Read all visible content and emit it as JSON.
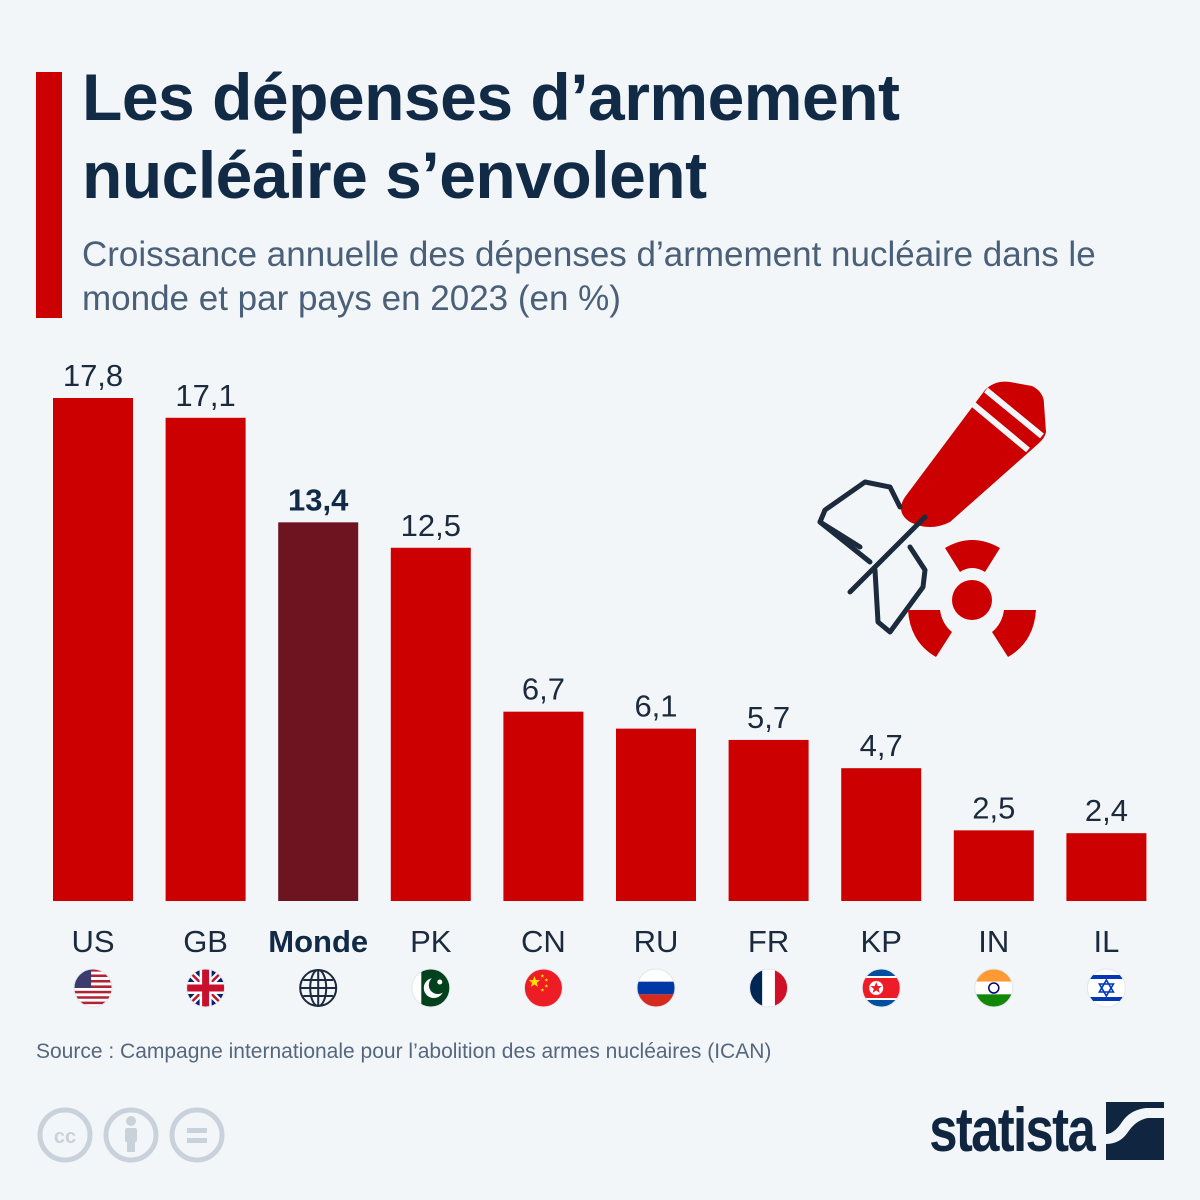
{
  "header": {
    "title": "Les dépenses d’armement nucléaire s’envolent",
    "subtitle": "Croissance annuelle des dépenses d’armement nucléaire dans le monde et par pays en 2023 (en %)"
  },
  "colors": {
    "accent": "#cc0000",
    "bar": "#cc0000",
    "highlight_bar": "#6e1420",
    "text_dark": "#112a46"
  },
  "chart_data": {
    "type": "bar",
    "title": "Les dépenses d’armement nucléaire s’envolent",
    "subtitle": "Croissance annuelle des dépenses d’armement nucléaire dans le monde et par pays en 2023 (en %)",
    "xlabel": "",
    "ylabel": "",
    "ylim": [
      0,
      17.8
    ],
    "grid": false,
    "legend": "none",
    "categories": [
      "US",
      "GB",
      "Monde",
      "PK",
      "CN",
      "RU",
      "FR",
      "KP",
      "IN",
      "IL"
    ],
    "values": [
      17.8,
      17.1,
      13.4,
      12.5,
      6.7,
      6.1,
      5.7,
      4.7,
      2.5,
      2.4
    ],
    "value_labels": [
      "17,8",
      "17,1",
      "13,4",
      "12,5",
      "6,7",
      "6,1",
      "5,7",
      "4,7",
      "2,5",
      "2,4"
    ],
    "highlighted": "Monde",
    "category_icons": [
      "flag-us-icon",
      "flag-gb-icon",
      "globe-icon",
      "flag-pk-icon",
      "flag-cn-icon",
      "flag-ru-icon",
      "flag-fr-icon",
      "flag-kp-icon",
      "flag-in-icon",
      "flag-il-icon"
    ]
  },
  "decoration": {
    "icon": "nuclear-missile-icon"
  },
  "footer": {
    "source": "Source : Campagne internationale pour l’abolition des armes nucléaires (ICAN)",
    "license_icons": [
      "cc-icon",
      "attribution-icon",
      "no-derivatives-icon"
    ],
    "brand": "statista"
  }
}
